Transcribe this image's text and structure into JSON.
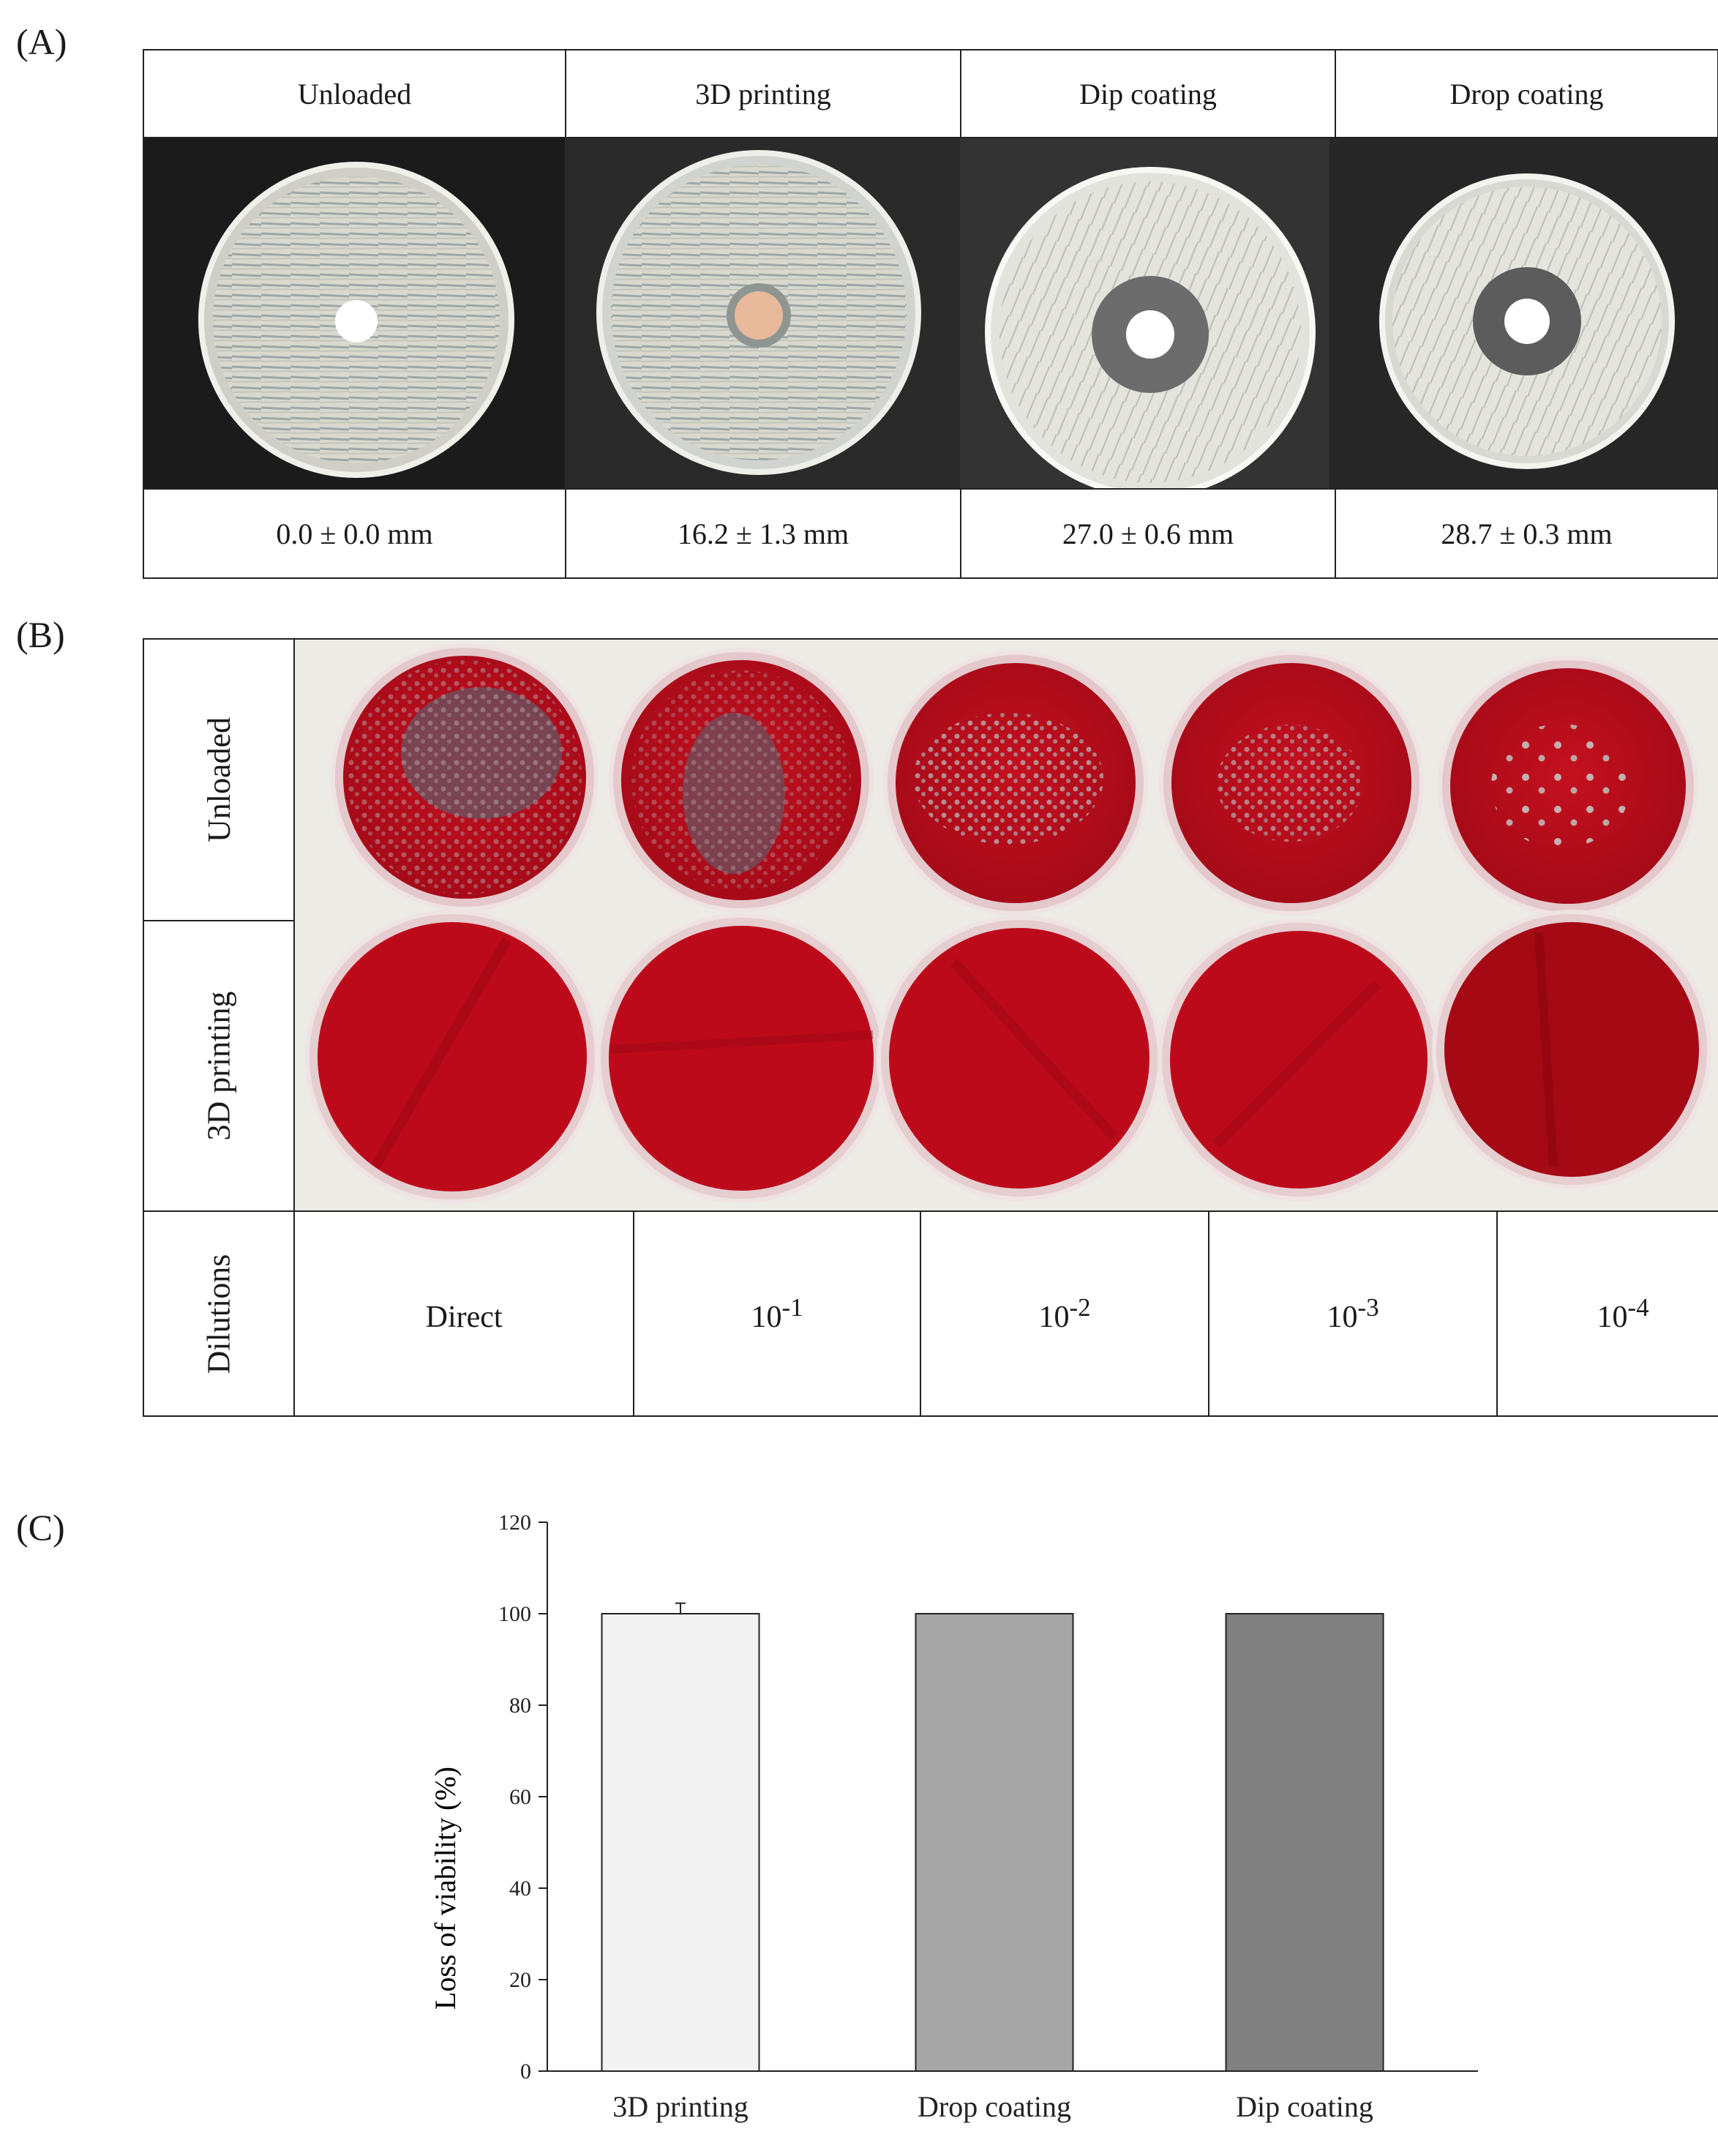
{
  "panel_labels": {
    "a": "(A)",
    "b": "(B)",
    "c": "(C)"
  },
  "panel_a": {
    "headers": [
      "Unloaded",
      "3D printing",
      "Dip coating",
      "Drop coating"
    ],
    "zones": [
      "0.0 ± 0.0 mm",
      "16.2 ±  1.3 mm",
      "27.0 ± 0.6 mm",
      "28.7 ± 0.3 mm"
    ]
  },
  "panel_b": {
    "row_labels": [
      "Unloaded",
      "3D printing"
    ],
    "dilution_label": "Dilutions",
    "dilutions": [
      {
        "base": "Direct",
        "exp": ""
      },
      {
        "base": "10",
        "exp": "-1"
      },
      {
        "base": "10",
        "exp": "-2"
      },
      {
        "base": "10",
        "exp": "-3"
      },
      {
        "base": "10",
        "exp": "-4"
      }
    ]
  },
  "chart_data": {
    "type": "bar",
    "categories": [
      "3D printing",
      "Drop coating",
      "Dip coating"
    ],
    "values": [
      100,
      100,
      100
    ],
    "errors": [
      2.3,
      0,
      0
    ],
    "colors": [
      "#f2f2f2",
      "#a6a6a6",
      "#808080"
    ],
    "ylabel": "Loss of viability (%)",
    "ylim": [
      0,
      120
    ],
    "yticks": [
      0,
      20,
      40,
      60,
      80,
      100,
      120
    ]
  }
}
